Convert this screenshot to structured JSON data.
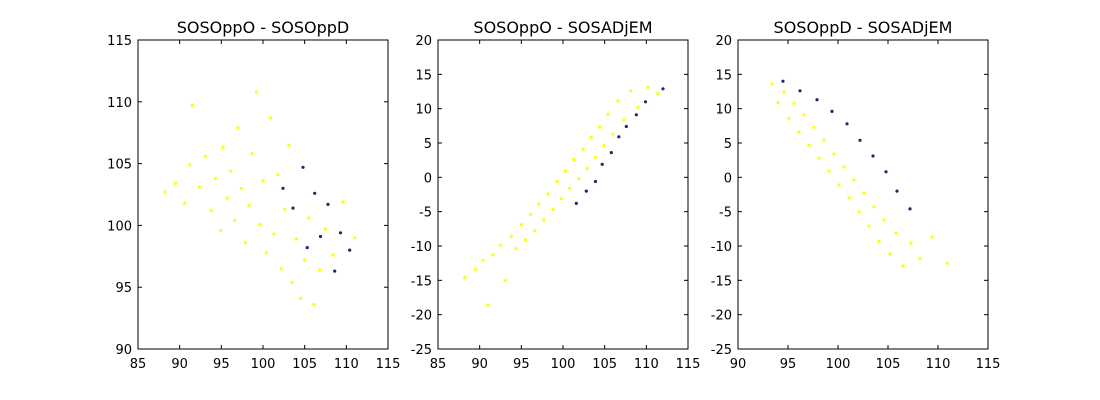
{
  "chart_data": [
    {
      "type": "scatter",
      "title": "SOSOppO - SOSOppD",
      "xlabel": "",
      "ylabel": "",
      "xlim": [
        85,
        115
      ],
      "ylim": [
        90,
        115
      ],
      "xticks": [
        85,
        90,
        95,
        100,
        105,
        110,
        115
      ],
      "yticks": [
        90,
        95,
        100,
        105,
        110,
        115
      ],
      "grid": false,
      "series": [
        {
          "color": "#ffff00",
          "values": [
            [
              88.2,
              102.7
            ],
            [
              89.5,
              103.4
            ],
            [
              90.6,
              101.8
            ],
            [
              91.2,
              104.9
            ],
            [
              91.5,
              109.7
            ],
            [
              92.4,
              103.1
            ],
            [
              93.1,
              105.6
            ],
            [
              93.8,
              101.2
            ],
            [
              94.3,
              103.8
            ],
            [
              94.9,
              99.6
            ],
            [
              95.2,
              106.3
            ],
            [
              95.7,
              102.2
            ],
            [
              96.1,
              104.4
            ],
            [
              96.6,
              100.4
            ],
            [
              97.0,
              107.9
            ],
            [
              97.4,
              103.0
            ],
            [
              97.9,
              98.6
            ],
            [
              98.3,
              101.6
            ],
            [
              98.7,
              105.8
            ],
            [
              99.2,
              110.8
            ],
            [
              99.6,
              100.1
            ],
            [
              100.0,
              103.6
            ],
            [
              100.4,
              97.8
            ],
            [
              100.9,
              108.7
            ],
            [
              101.3,
              99.3
            ],
            [
              101.8,
              104.1
            ],
            [
              102.2,
              96.5
            ],
            [
              102.6,
              101.3
            ],
            [
              103.1,
              106.5
            ],
            [
              103.5,
              95.4
            ],
            [
              104.0,
              98.9
            ],
            [
              104.5,
              94.1
            ],
            [
              105.0,
              97.2
            ],
            [
              105.5,
              100.6
            ],
            [
              106.1,
              93.6
            ],
            [
              106.8,
              96.4
            ],
            [
              107.5,
              99.7
            ],
            [
              108.4,
              97.6
            ],
            [
              109.6,
              101.9
            ],
            [
              111.0,
              99.0
            ]
          ]
        },
        {
          "color": "#1c2a66",
          "values": [
            [
              102.4,
              103.0
            ],
            [
              103.6,
              101.4
            ],
            [
              104.8,
              104.7
            ],
            [
              105.3,
              98.2
            ],
            [
              106.2,
              102.6
            ],
            [
              106.9,
              99.1
            ],
            [
              107.8,
              101.7
            ],
            [
              108.6,
              96.3
            ],
            [
              109.3,
              99.4
            ],
            [
              110.4,
              98.0
            ]
          ]
        }
      ]
    },
    {
      "type": "scatter",
      "title": "SOSOppO - SOSADjEM",
      "xlabel": "",
      "ylabel": "",
      "xlim": [
        85,
        115
      ],
      "ylim": [
        -25,
        20
      ],
      "xticks": [
        85,
        90,
        95,
        100,
        105,
        110,
        115
      ],
      "yticks": [
        -25,
        -20,
        -15,
        -10,
        -5,
        0,
        5,
        10,
        15,
        20
      ],
      "grid": false,
      "series": [
        {
          "color": "#ffff00",
          "values": [
            [
              88.2,
              -14.6
            ],
            [
              89.5,
              -13.4
            ],
            [
              90.4,
              -12.1
            ],
            [
              91.0,
              -18.6
            ],
            [
              91.6,
              -11.3
            ],
            [
              92.5,
              -9.9
            ],
            [
              93.1,
              -15.0
            ],
            [
              93.8,
              -8.6
            ],
            [
              94.4,
              -10.4
            ],
            [
              95.0,
              -6.9
            ],
            [
              95.5,
              -9.1
            ],
            [
              96.1,
              -5.4
            ],
            [
              96.6,
              -7.8
            ],
            [
              97.1,
              -3.9
            ],
            [
              97.7,
              -6.2
            ],
            [
              98.2,
              -2.4
            ],
            [
              98.8,
              -4.7
            ],
            [
              99.3,
              -0.6
            ],
            [
              99.8,
              -3.1
            ],
            [
              100.3,
              0.9
            ],
            [
              100.8,
              -1.6
            ],
            [
              101.3,
              2.6
            ],
            [
              101.9,
              -0.2
            ],
            [
              102.4,
              4.1
            ],
            [
              102.9,
              1.3
            ],
            [
              103.4,
              5.8
            ],
            [
              103.9,
              2.9
            ],
            [
              104.4,
              7.3
            ],
            [
              104.9,
              4.6
            ],
            [
              105.4,
              9.2
            ],
            [
              106.0,
              6.3
            ],
            [
              106.6,
              11.1
            ],
            [
              107.3,
              8.4
            ],
            [
              108.1,
              12.6
            ],
            [
              109.0,
              10.2
            ],
            [
              110.2,
              13.1
            ],
            [
              111.4,
              12.2
            ]
          ]
        },
        {
          "color": "#1c2a66",
          "values": [
            [
              101.6,
              -3.8
            ],
            [
              102.8,
              -2.0
            ],
            [
              103.9,
              -0.6
            ],
            [
              104.7,
              1.9
            ],
            [
              105.8,
              3.6
            ],
            [
              106.7,
              5.9
            ],
            [
              107.6,
              7.4
            ],
            [
              108.8,
              9.1
            ],
            [
              109.9,
              11.0
            ],
            [
              112.0,
              12.9
            ]
          ]
        }
      ]
    },
    {
      "type": "scatter",
      "title": "SOSOppD - SOSADjEM",
      "xlabel": "",
      "ylabel": "",
      "xlim": [
        90,
        115
      ],
      "ylim": [
        -25,
        20
      ],
      "xticks": [
        90,
        95,
        100,
        105,
        110,
        115
      ],
      "yticks": [
        -25,
        -20,
        -15,
        -10,
        -5,
        0,
        5,
        10,
        15,
        20
      ],
      "grid": false,
      "series": [
        {
          "color": "#ffff00",
          "values": [
            [
              93.4,
              13.6
            ],
            [
              94.0,
              10.9
            ],
            [
              94.6,
              12.4
            ],
            [
              95.1,
              8.6
            ],
            [
              95.6,
              10.8
            ],
            [
              96.1,
              6.6
            ],
            [
              96.6,
              9.1
            ],
            [
              97.1,
              4.7
            ],
            [
              97.6,
              7.3
            ],
            [
              98.1,
              2.8
            ],
            [
              98.6,
              5.4
            ],
            [
              99.1,
              0.9
            ],
            [
              99.6,
              3.4
            ],
            [
              100.1,
              -1.1
            ],
            [
              100.6,
              1.5
            ],
            [
              101.1,
              -3.0
            ],
            [
              101.6,
              -0.4
            ],
            [
              102.1,
              -5.0
            ],
            [
              102.6,
              -2.3
            ],
            [
              103.1,
              -7.1
            ],
            [
              103.6,
              -4.3
            ],
            [
              104.1,
              -9.3
            ],
            [
              104.6,
              -6.2
            ],
            [
              105.2,
              -11.2
            ],
            [
              105.8,
              -8.1
            ],
            [
              106.5,
              -12.9
            ],
            [
              107.3,
              -9.6
            ],
            [
              108.2,
              -11.8
            ],
            [
              109.4,
              -8.7
            ],
            [
              110.9,
              -12.5
            ]
          ]
        },
        {
          "color": "#1c2a66",
          "values": [
            [
              94.5,
              14.0
            ],
            [
              96.2,
              12.6
            ],
            [
              97.9,
              11.3
            ],
            [
              99.4,
              9.6
            ],
            [
              100.9,
              7.8
            ],
            [
              102.2,
              5.4
            ],
            [
              103.5,
              3.1
            ],
            [
              104.8,
              0.8
            ],
            [
              105.9,
              -2.0
            ],
            [
              107.2,
              -4.6
            ]
          ]
        }
      ]
    }
  ]
}
